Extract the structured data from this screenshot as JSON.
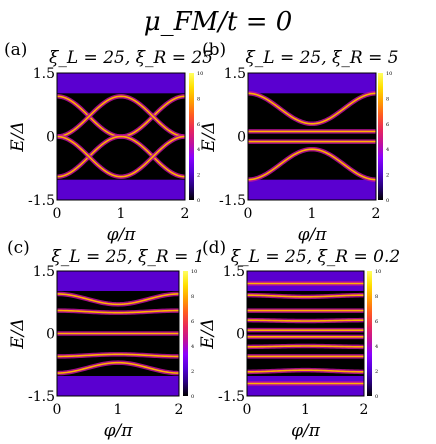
{
  "figure": {
    "title": "μ_FM/t = 0"
  },
  "colormap": {
    "name": "gnuplot-pm3d",
    "stops": [
      "#000000",
      "#2a0080",
      "#5500d8",
      "#8a00ff",
      "#c0109c",
      "#e8285a",
      "#ff5a20",
      "#ffa000",
      "#ffe000",
      "#ffff60"
    ],
    "colorbar_ticks": [
      "0",
      "2",
      "4",
      "6",
      "8",
      "10"
    ]
  },
  "chart_data": [
    {
      "type": "heatmap",
      "panel_label": "(a)",
      "title": "ξ_L = 25, ξ_R = 25",
      "xlabel": "φ/π",
      "ylabel": "E/Δ",
      "xlim": [
        0,
        2
      ],
      "ylim": [
        -1.5,
        1.5
      ],
      "x_ticks": [
        "0",
        "1",
        "2"
      ],
      "y_ticks": [
        "1.5",
        "0",
        "-1.5"
      ],
      "zlim": [
        0,
        10
      ],
      "bands": [
        {
          "E_at_0": 0.95,
          "E_at_1": 0.0
        },
        {
          "E_at_0": -0.95,
          "E_at_1": 0.0
        },
        {
          "E_at_0": 0.0,
          "E_at_1": 0.95
        },
        {
          "E_at_0": 0.0,
          "E_at_1": -0.95
        }
      ]
    },
    {
      "type": "heatmap",
      "panel_label": "(b)",
      "title": "ξ_L = 25, ξ_R = 5",
      "xlabel": "φ/π",
      "ylabel": "E/Δ",
      "xlim": [
        0,
        2
      ],
      "ylim": [
        -1.5,
        1.5
      ],
      "x_ticks": [
        "0",
        "1",
        "2"
      ],
      "y_ticks": [
        "1.5",
        "0",
        "-1.5"
      ],
      "zlim": [
        0,
        10
      ],
      "bands": [
        {
          "E_at_0": 1.02,
          "E_at_1": 0.3
        },
        {
          "E_at_0": -1.02,
          "E_at_1": -0.3
        },
        {
          "E_at_0": 0.12,
          "E_at_1": 0.12
        },
        {
          "E_at_0": -0.12,
          "E_at_1": -0.12
        }
      ]
    },
    {
      "type": "heatmap",
      "panel_label": "(c)",
      "title": "ξ_L = 25, ξ_R = 1",
      "xlabel": "φ/π",
      "ylabel": "E/Δ",
      "xlim": [
        0,
        2
      ],
      "ylim": [
        -1.5,
        1.5
      ],
      "x_ticks": [
        "0",
        "1",
        "2"
      ],
      "y_ticks": [
        "1.5",
        "0",
        "-1.5"
      ],
      "zlim": [
        0,
        10
      ],
      "bands": [
        {
          "E_at_0": 0.95,
          "E_at_1": 0.7
        },
        {
          "E_at_0": -0.95,
          "E_at_1": -0.7
        },
        {
          "E_at_0": 0.55,
          "E_at_1": 0.5
        },
        {
          "E_at_0": -0.55,
          "E_at_1": -0.5
        },
        {
          "E_at_0": 0.0,
          "E_at_1": 0.0
        }
      ]
    },
    {
      "type": "heatmap",
      "panel_label": "(d)",
      "title": "ξ_L = 25, ξ_R = 0.2",
      "xlabel": "φ/π",
      "ylabel": "E/Δ",
      "xlim": [
        0,
        2
      ],
      "ylim": [
        -1.5,
        1.5
      ],
      "x_ticks": [
        "0",
        "1",
        "2"
      ],
      "y_ticks": [
        "1.5",
        "0",
        "-1.5"
      ],
      "zlim": [
        0,
        10
      ],
      "bands": [
        {
          "E_at_0": 1.2,
          "E_at_1": 1.2
        },
        {
          "E_at_0": -1.2,
          "E_at_1": -1.2
        },
        {
          "E_at_0": 0.92,
          "E_at_1": 0.88
        },
        {
          "E_at_0": -0.92,
          "E_at_1": -0.88
        },
        {
          "E_at_0": 0.55,
          "E_at_1": 0.55
        },
        {
          "E_at_0": -0.55,
          "E_at_1": -0.55
        },
        {
          "E_at_0": 0.32,
          "E_at_1": 0.3
        },
        {
          "E_at_0": -0.32,
          "E_at_1": -0.3
        },
        {
          "E_at_0": 0.08,
          "E_at_1": 0.08
        },
        {
          "E_at_0": -0.08,
          "E_at_1": -0.08
        }
      ]
    }
  ]
}
